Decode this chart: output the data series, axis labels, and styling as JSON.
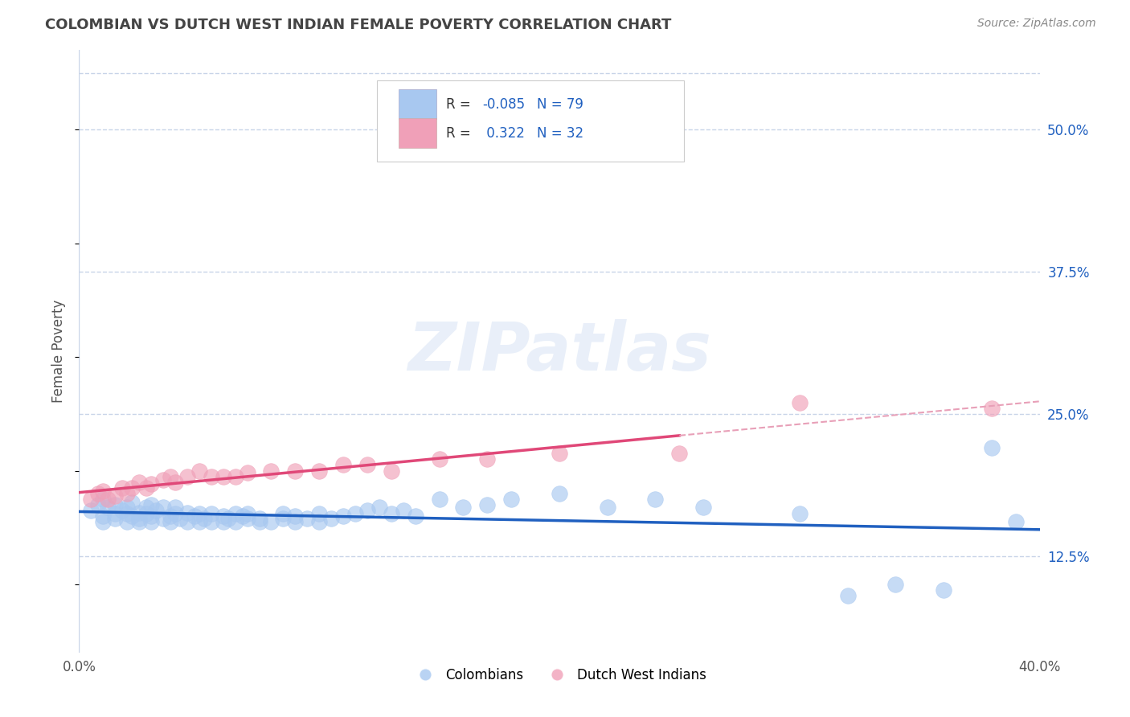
{
  "title": "COLOMBIAN VS DUTCH WEST INDIAN FEMALE POVERTY CORRELATION CHART",
  "source": "Source: ZipAtlas.com",
  "ylabel": "Female Poverty",
  "xlim": [
    0.0,
    0.4
  ],
  "ylim": [
    0.04,
    0.57
  ],
  "xticks": [
    0.0,
    0.4
  ],
  "xticklabels": [
    "0.0%",
    "40.0%"
  ],
  "yticks_right": [
    0.125,
    0.25,
    0.375,
    0.5
  ],
  "yticklabels_right": [
    "12.5%",
    "25.0%",
    "37.5%",
    "50.0%"
  ],
  "colombians_R": -0.085,
  "colombians_N": 79,
  "dutch_R": 0.322,
  "dutch_N": 32,
  "colombian_color": "#a8c8f0",
  "dutch_color": "#f0a0b8",
  "colombian_line_color": "#2060c0",
  "dutch_line_color": "#e04878",
  "dutch_dash_color": "#e8a0b8",
  "background_color": "#ffffff",
  "grid_color": "#c8d4e8",
  "watermark": "ZIPatlas",
  "legend_label_color": "#2060c0",
  "legend_r_label_color": "#333333",
  "colombians_x": [
    0.005,
    0.008,
    0.01,
    0.01,
    0.01,
    0.012,
    0.015,
    0.015,
    0.015,
    0.018,
    0.02,
    0.02,
    0.02,
    0.022,
    0.022,
    0.025,
    0.025,
    0.025,
    0.028,
    0.028,
    0.03,
    0.03,
    0.03,
    0.032,
    0.035,
    0.035,
    0.038,
    0.038,
    0.04,
    0.04,
    0.042,
    0.045,
    0.045,
    0.048,
    0.05,
    0.05,
    0.052,
    0.055,
    0.055,
    0.06,
    0.06,
    0.062,
    0.065,
    0.065,
    0.068,
    0.07,
    0.07,
    0.075,
    0.075,
    0.08,
    0.085,
    0.085,
    0.09,
    0.09,
    0.095,
    0.1,
    0.1,
    0.105,
    0.11,
    0.115,
    0.12,
    0.125,
    0.13,
    0.135,
    0.14,
    0.15,
    0.16,
    0.17,
    0.18,
    0.2,
    0.22,
    0.24,
    0.26,
    0.3,
    0.32,
    0.34,
    0.36,
    0.38,
    0.39
  ],
  "colombians_y": [
    0.165,
    0.17,
    0.175,
    0.155,
    0.16,
    0.168,
    0.162,
    0.17,
    0.158,
    0.165,
    0.155,
    0.162,
    0.168,
    0.16,
    0.172,
    0.158,
    0.163,
    0.155,
    0.162,
    0.168,
    0.155,
    0.16,
    0.17,
    0.165,
    0.158,
    0.168,
    0.16,
    0.155,
    0.162,
    0.168,
    0.158,
    0.155,
    0.163,
    0.16,
    0.155,
    0.162,
    0.158,
    0.155,
    0.162,
    0.155,
    0.16,
    0.158,
    0.162,
    0.155,
    0.16,
    0.158,
    0.162,
    0.155,
    0.158,
    0.155,
    0.158,
    0.162,
    0.155,
    0.16,
    0.158,
    0.155,
    0.162,
    0.158,
    0.16,
    0.162,
    0.165,
    0.168,
    0.162,
    0.165,
    0.16,
    0.175,
    0.168,
    0.17,
    0.175,
    0.18,
    0.168,
    0.175,
    0.168,
    0.162,
    0.09,
    0.1,
    0.095,
    0.22,
    0.155
  ],
  "dutch_x": [
    0.005,
    0.008,
    0.01,
    0.012,
    0.015,
    0.018,
    0.02,
    0.022,
    0.025,
    0.028,
    0.03,
    0.035,
    0.038,
    0.04,
    0.045,
    0.05,
    0.055,
    0.06,
    0.065,
    0.07,
    0.08,
    0.09,
    0.1,
    0.11,
    0.12,
    0.13,
    0.15,
    0.17,
    0.2,
    0.25,
    0.3,
    0.38
  ],
  "dutch_y": [
    0.175,
    0.18,
    0.182,
    0.175,
    0.178,
    0.185,
    0.18,
    0.185,
    0.19,
    0.185,
    0.188,
    0.192,
    0.195,
    0.19,
    0.195,
    0.2,
    0.195,
    0.195,
    0.195,
    0.198,
    0.2,
    0.2,
    0.2,
    0.205,
    0.205,
    0.2,
    0.21,
    0.21,
    0.215,
    0.215,
    0.26,
    0.255
  ]
}
